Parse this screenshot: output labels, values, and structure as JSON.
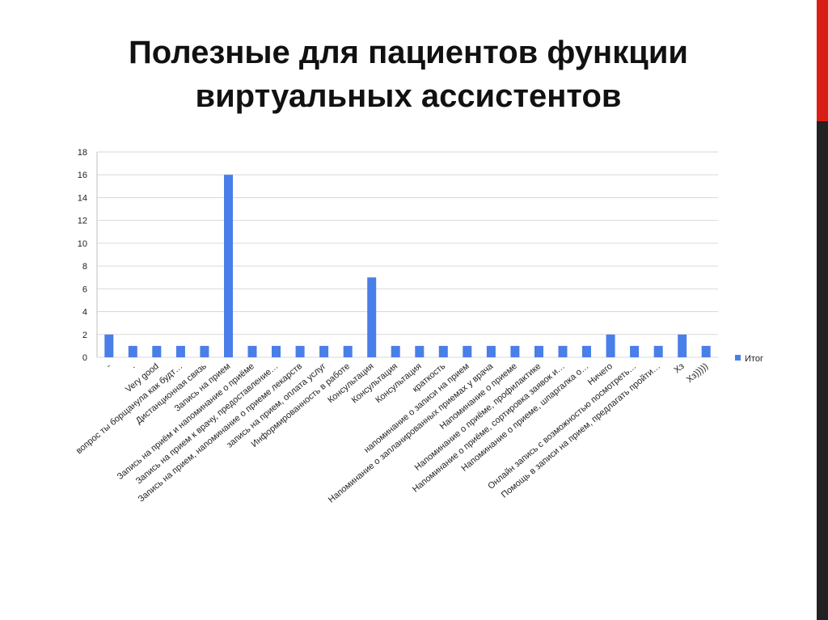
{
  "slide": {
    "title_line1": "Полезные для пациентов функции",
    "title_line2": "виртуальных ассистентов"
  },
  "colors": {
    "bar": "#4a7ee8",
    "grid": "#d9d9d9",
    "accent_red": "#d91e18",
    "accent_dark": "#222222"
  },
  "chart_data": {
    "type": "bar",
    "title": "",
    "xlabel": "",
    "ylabel": "",
    "ylim": [
      0,
      18
    ],
    "yticks": [
      0,
      2,
      4,
      6,
      8,
      10,
      12,
      14,
      16,
      18
    ],
    "grid": true,
    "legend_position": "right",
    "categories": [
      "-",
      ".",
      "Very good",
      "вопрос ты борщанула как будт…",
      "Дистанционная связь",
      "Запись на прием",
      "Запись на приём и напоминание о приёме",
      "Запись на прием к врачу, предоставление…",
      "Запись на прием, напоминание о приеме лекарств",
      "запись на прием, оплата услуг",
      "Информированность в работе",
      "Консультация",
      "Консультация",
      "Консультация",
      "краткость",
      "напоминание о записи на прием",
      "Напоминание о запланированных приемах у врача",
      "Напоминание о приеме",
      "Напоминание о приёме, профилактике",
      "Напоминание о приёме, сортировка заявок и…",
      "Напоминание о приеме, шпаргалка о…",
      "Ничего",
      "Онлайн запись с возможностью посмотреть…",
      "Помощь в записи на прием, предлагать пройти…",
      "Хз",
      "Хз)))))"
    ],
    "series": [
      {
        "name": "Итог",
        "values": [
          2,
          1,
          1,
          1,
          1,
          16,
          1,
          1,
          1,
          1,
          1,
          7,
          1,
          1,
          1,
          1,
          1,
          1,
          1,
          1,
          1,
          2,
          1,
          1,
          2,
          1
        ]
      }
    ]
  }
}
